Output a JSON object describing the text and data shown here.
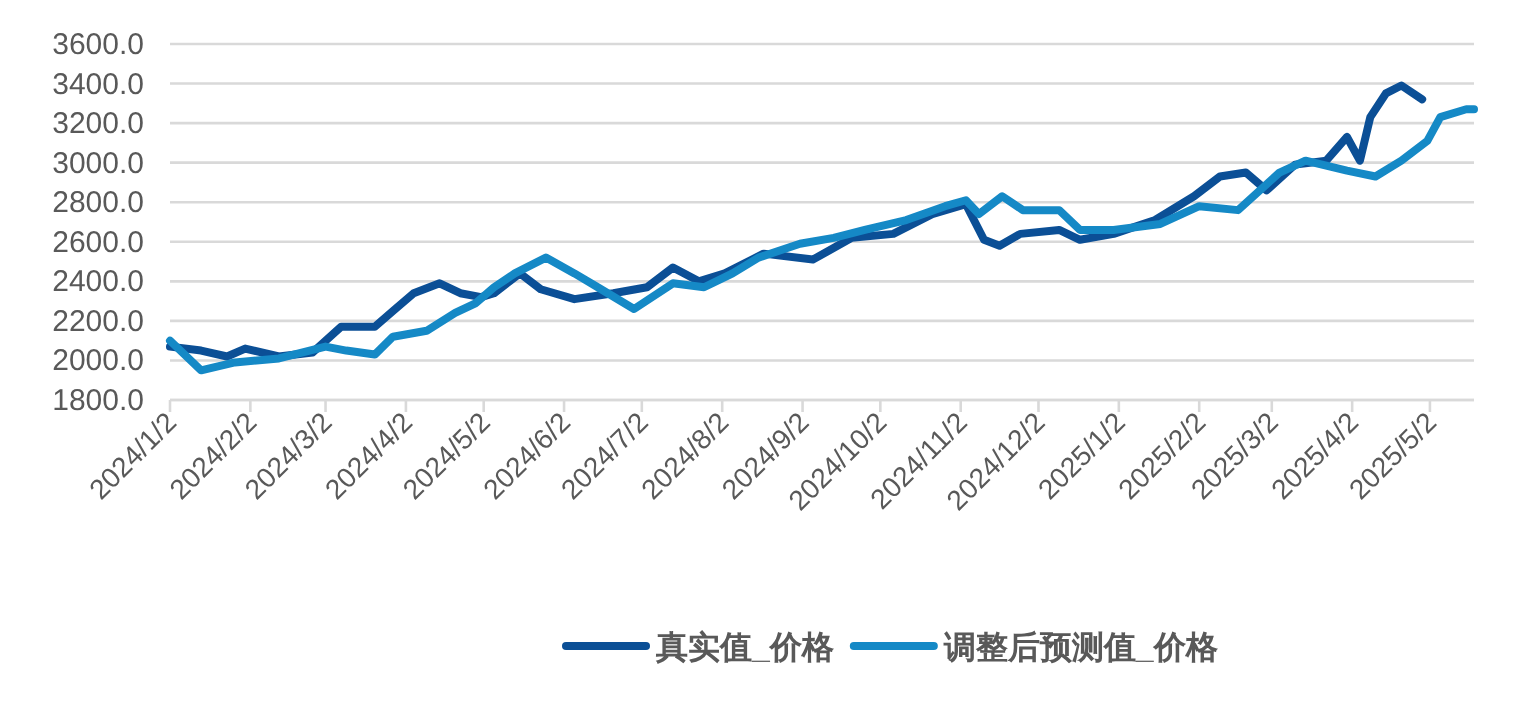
{
  "chart_data": {
    "type": "line",
    "grid": "y",
    "legend": "bottom",
    "marker": "none",
    "line_style": "solid",
    "xlim": [
      "2024-01-02",
      "2025-05-19"
    ],
    "ylim": [
      1800,
      3600
    ],
    "yticks": [
      {
        "value": 1800,
        "label": "1800.0"
      },
      {
        "value": 2000,
        "label": "2000.0"
      },
      {
        "value": 2200,
        "label": "2200.0"
      },
      {
        "value": 2400,
        "label": "2400.0"
      },
      {
        "value": 2600,
        "label": "2600.0"
      },
      {
        "value": 2800,
        "label": "2800.0"
      },
      {
        "value": 3000,
        "label": "3000.0"
      },
      {
        "value": 3200,
        "label": "3200.0"
      },
      {
        "value": 3400,
        "label": "3400.0"
      },
      {
        "value": 3600,
        "label": "3600.0"
      }
    ],
    "xticks": [
      {
        "value": "2024-01-02",
        "label": "2024/1/2"
      },
      {
        "value": "2024-02-02",
        "label": "2024/2/2"
      },
      {
        "value": "2024-03-02",
        "label": "2024/3/2"
      },
      {
        "value": "2024-04-02",
        "label": "2024/4/2"
      },
      {
        "value": "2024-05-02",
        "label": "2024/5/2"
      },
      {
        "value": "2024-06-02",
        "label": "2024/6/2"
      },
      {
        "value": "2024-07-02",
        "label": "2024/7/2"
      },
      {
        "value": "2024-08-02",
        "label": "2024/8/2"
      },
      {
        "value": "2024-09-02",
        "label": "2024/9/2"
      },
      {
        "value": "2024-10-02",
        "label": "2024/10/2"
      },
      {
        "value": "2024-11-02",
        "label": "2024/11/2"
      },
      {
        "value": "2024-12-02",
        "label": "2024/12/2"
      },
      {
        "value": "2025-01-02",
        "label": "2025/1/2"
      },
      {
        "value": "2025-02-02",
        "label": "2025/2/2"
      },
      {
        "value": "2025-03-02",
        "label": "2025/3/2"
      },
      {
        "value": "2025-04-02",
        "label": "2025/4/2"
      },
      {
        "value": "2025-05-02",
        "label": "2025/5/2"
      }
    ],
    "series": [
      {
        "name": "真实值_价格",
        "color": "#0b4f96",
        "x": [
          "2024-01-02",
          "2024-01-14",
          "2024-01-24",
          "2024-01-31",
          "2024-02-13",
          "2024-02-26",
          "2024-03-08",
          "2024-03-21",
          "2024-03-28",
          "2024-04-05",
          "2024-04-15",
          "2024-04-23",
          "2024-05-01",
          "2024-05-06",
          "2024-05-16",
          "2024-05-24",
          "2024-06-06",
          "2024-06-21",
          "2024-07-04",
          "2024-07-14",
          "2024-07-24",
          "2024-08-03",
          "2024-08-18",
          "2024-09-06",
          "2024-09-21",
          "2024-10-07",
          "2024-10-22",
          "2024-11-04",
          "2024-11-11",
          "2024-11-17",
          "2024-11-25",
          "2024-12-10",
          "2024-12-18",
          "2024-12-31",
          "2025-01-16",
          "2025-01-31",
          "2025-02-10",
          "2025-02-20",
          "2025-02-28",
          "2025-03-11",
          "2025-03-23",
          "2025-03-31",
          "2025-04-05",
          "2025-04-09",
          "2025-04-15",
          "2025-04-21",
          "2025-04-29"
        ],
        "values": [
          2070,
          2050,
          2020,
          2060,
          2020,
          2040,
          2170,
          2170,
          2250,
          2340,
          2390,
          2340,
          2320,
          2340,
          2440,
          2360,
          2310,
          2340,
          2370,
          2470,
          2400,
          2440,
          2540,
          2510,
          2620,
          2640,
          2740,
          2790,
          2610,
          2580,
          2640,
          2660,
          2610,
          2640,
          2710,
          2830,
          2930,
          2950,
          2860,
          2990,
          3010,
          3130,
          3010,
          3230,
          3350,
          3390,
          3320
        ]
      },
      {
        "name": "调整后预测值_价格",
        "color": "#1589c6",
        "x": [
          "2024-01-02",
          "2024-01-14",
          "2024-01-27",
          "2024-02-13",
          "2024-03-02",
          "2024-03-10",
          "2024-03-21",
          "2024-03-28",
          "2024-04-10",
          "2024-04-21",
          "2024-04-29",
          "2024-05-06",
          "2024-05-14",
          "2024-05-26",
          "2024-06-06",
          "2024-06-15",
          "2024-06-29",
          "2024-07-14",
          "2024-07-26",
          "2024-08-06",
          "2024-08-16",
          "2024-09-01",
          "2024-09-14",
          "2024-09-26",
          "2024-10-12",
          "2024-10-27",
          "2024-11-04",
          "2024-11-09",
          "2024-11-18",
          "2024-11-26",
          "2024-12-10",
          "2024-12-18",
          "2024-12-31",
          "2025-01-18",
          "2025-02-02",
          "2025-02-17",
          "2025-03-05",
          "2025-03-15",
          "2025-03-31",
          "2025-04-11",
          "2025-04-21",
          "2025-05-01",
          "2025-05-06",
          "2025-05-16",
          "2025-05-19"
        ],
        "values": [
          2100,
          1950,
          1990,
          2010,
          2070,
          2050,
          2030,
          2120,
          2150,
          2240,
          2290,
          2370,
          2440,
          2520,
          2440,
          2370,
          2260,
          2390,
          2370,
          2440,
          2520,
          2590,
          2620,
          2660,
          2710,
          2780,
          2810,
          2740,
          2830,
          2760,
          2760,
          2660,
          2660,
          2690,
          2780,
          2760,
          2950,
          3010,
          2960,
          2930,
          3010,
          3110,
          3230,
          3270,
          3270
        ]
      }
    ]
  }
}
